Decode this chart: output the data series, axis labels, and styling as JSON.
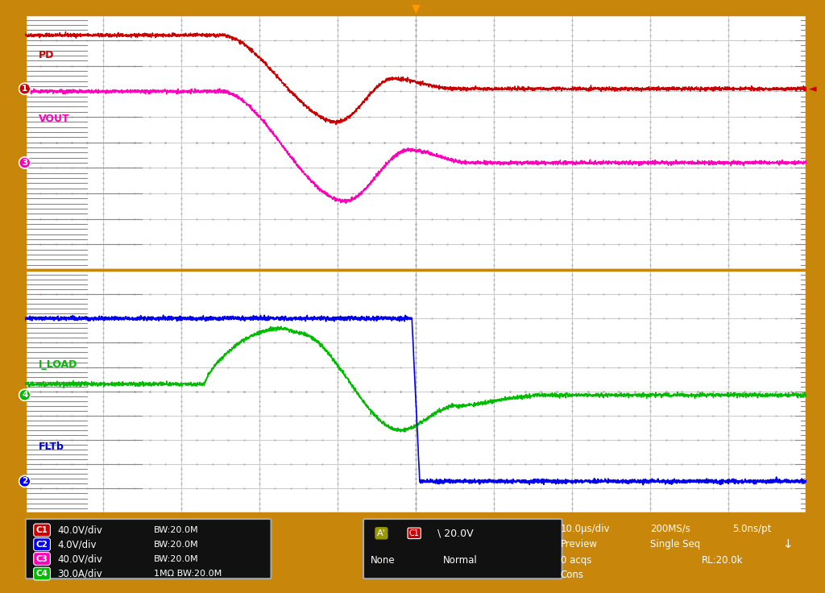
{
  "outer_bg": "#c8860a",
  "plot_bg": "#ffffff",
  "status_bg": "#1c1c1c",
  "grid_color": "#cccccc",
  "dot_color": "#aaaaaa",
  "ch1_color": "#cc0000",
  "ch3_color": "#ff00bb",
  "ch4_color": "#00bb00",
  "ch2_color": "#0000ee",
  "trigger_color": "#ff9900",
  "trigger_arrow_color": "#cc0000",
  "panel_border_color": "#c8860a",
  "labels": {
    "PD": "PD",
    "VOUT": "VOUT",
    "I_LOAD": "I_LOAD",
    "FLTb": "FLTb"
  },
  "ch1_badge": "1",
  "ch2_badge": "2",
  "ch3_badge": "3",
  "ch4_badge": "4",
  "status_left": [
    {
      "badge": "C1",
      "badge_color": "#cc0000",
      "scale": "40.0V/div",
      "extra": "",
      "bw": "BW:20.0M"
    },
    {
      "badge": "C2",
      "badge_color": "#0000ee",
      "scale": "4.0V/div",
      "extra": "",
      "bw": "BW:20.0M"
    },
    {
      "badge": "C3",
      "badge_color": "#ff00bb",
      "scale": "40.0V/div",
      "extra": "",
      "bw": "BW:20.0M"
    },
    {
      "badge": "C4",
      "badge_color": "#00bb00",
      "scale": "30.0A/div",
      "extra": "1MΩ ",
      "bw": "BW:20.0M"
    }
  ],
  "trig_label": "A'",
  "trig_level": "20.0V",
  "coupling": "None",
  "trig_mode": "Normal",
  "time_div": "10.0μs/div",
  "sample_rate": "200MS/s",
  "sample_pt": "5.0ns/pt",
  "acqs_mode": "Preview",
  "seq_mode": "Single Seq",
  "acqs": "0 acqs",
  "rl": "RL:20.0k",
  "cons": "Cons"
}
